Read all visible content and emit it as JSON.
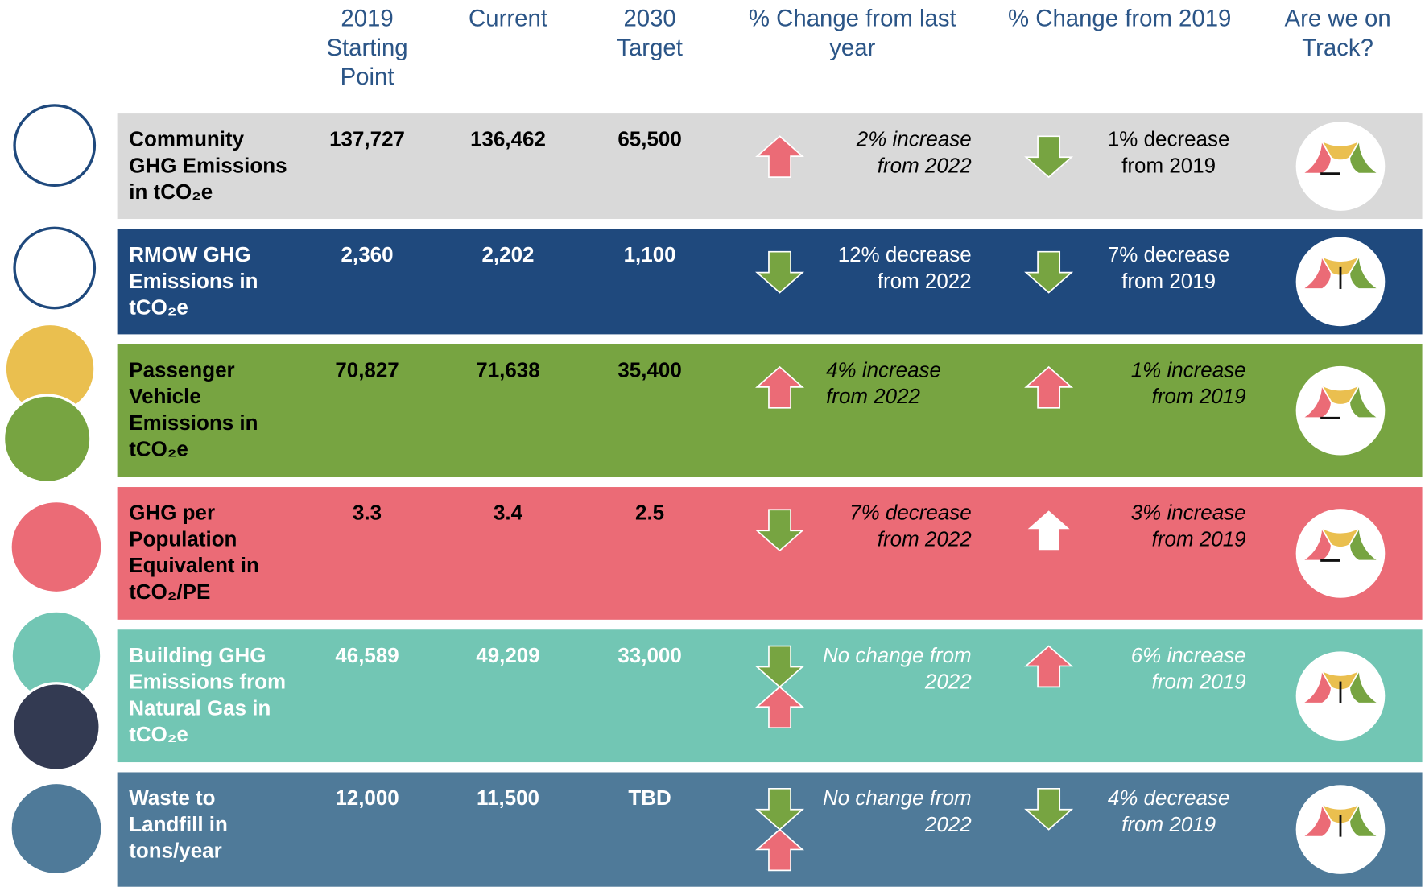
{
  "header": {
    "columns": [
      "2019 Starting Point",
      "Current",
      "2030 Target",
      "% Change from last year",
      "% Change from 2019",
      "Are we on Track?"
    ]
  },
  "rows": [
    {
      "label": "Community GHG Emissions in tCO₂e",
      "start": "137,727",
      "current": "136,462",
      "target": "65,500",
      "change_last_year": "2% increase from 2022",
      "change_2019": "1% decrease from 2019"
    },
    {
      "label": "RMOW GHG Emissions in tCO₂e",
      "start": "2,360",
      "current": "2,202",
      "target": "1,100",
      "change_last_year": "12% decrease from 2022",
      "change_2019": "7% decrease from 2019"
    },
    {
      "label": "Passenger Vehicle Emissions in tCO₂e",
      "start": "70,827",
      "current": "71,638",
      "target": "35,400",
      "change_last_year": "4% increase from 2022",
      "change_2019": "1% increase from 2019"
    },
    {
      "label": "GHG per Population Equivalent in tCO₂/PE",
      "start": "3.3",
      "current": "3.4",
      "target": "2.5",
      "change_last_year": "7% decrease from 2022",
      "change_2019": "3% increase from 2019"
    },
    {
      "label": "Building GHG Emissions from Natural Gas in tCO₂e",
      "start": "46,589",
      "current": "49,209",
      "target": "33,000",
      "change_last_year": "No change from 2022",
      "change_2019": "6% increase from 2019"
    },
    {
      "label": "Waste to Landfill in tons/year",
      "start": "12,000",
      "current": "11,500",
      "target": "TBD",
      "change_last_year": "No change from 2022",
      "change_2019": "4% decrease from 2019"
    }
  ]
}
